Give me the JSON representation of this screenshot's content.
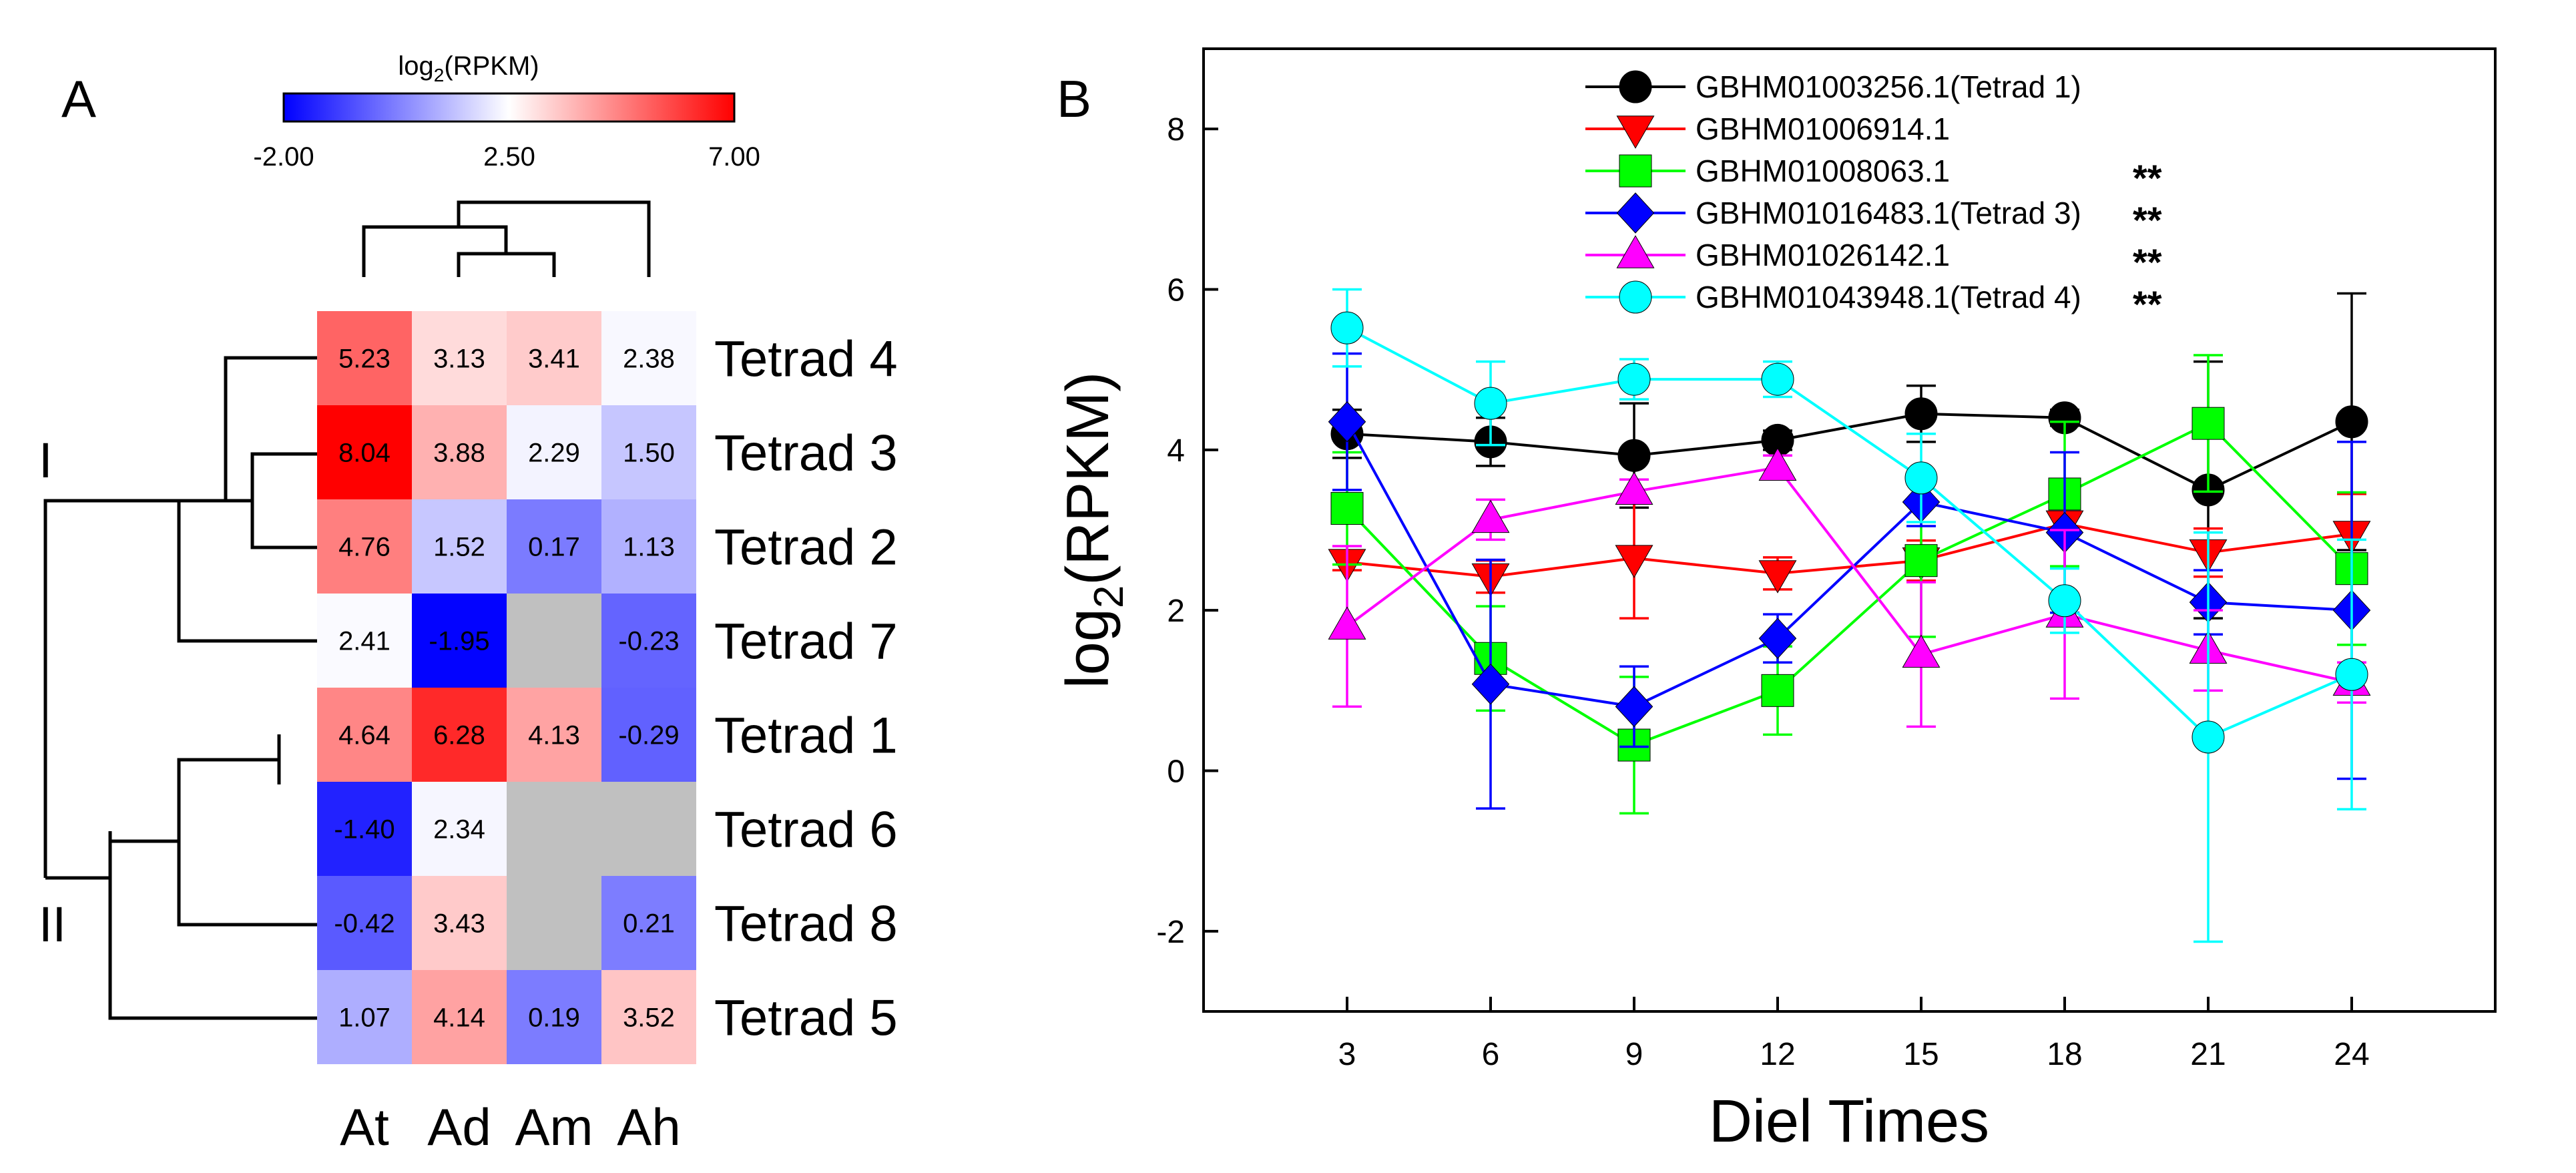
{
  "panel_a": {
    "label": "A",
    "colorbar": {
      "title": "log2(RPKM)",
      "title_main": "log",
      "title_sub": "2",
      "title_rest": "(RPKM)",
      "min_label": "-2.00",
      "mid_label": "2.50",
      "max_label": "7.00",
      "min_color": "#0000ff",
      "mid_color": "#ffffff",
      "max_color": "#ff0000",
      "missing_color": "#c0c0c0"
    },
    "group_labels": [
      "I",
      "II"
    ]
  },
  "panel_b": {
    "label": "B",
    "significance_marker": "**"
  },
  "chart_data": [
    {
      "type": "heatmap",
      "title": "log2(RPKM)",
      "columns": [
        "At",
        "Ad",
        "Am",
        "Ah"
      ],
      "rows": [
        "Tetrad 4",
        "Tetrad 3",
        "Tetrad 2",
        "Tetrad 7",
        "Tetrad 1",
        "Tetrad 6",
        "Tetrad 8",
        "Tetrad 5"
      ],
      "values": [
        [
          5.23,
          3.13,
          3.41,
          2.38
        ],
        [
          8.04,
          3.88,
          2.29,
          1.5
        ],
        [
          4.76,
          1.52,
          0.17,
          1.13
        ],
        [
          2.41,
          -1.95,
          null,
          -0.23
        ],
        [
          4.64,
          6.28,
          4.13,
          -0.29
        ],
        [
          -1.4,
          2.34,
          null,
          null
        ],
        [
          -0.42,
          3.43,
          null,
          0.21
        ],
        [
          1.07,
          4.14,
          0.19,
          3.52
        ]
      ],
      "labels": [
        [
          "5.23",
          "3.13",
          "3.41",
          "2.38"
        ],
        [
          "8.04",
          "3.88",
          "2.29",
          "1.50"
        ],
        [
          "4.76",
          "1.52",
          "0.17",
          "1.13"
        ],
        [
          "2.41",
          "-1.95",
          "",
          "-0.23"
        ],
        [
          "4.64",
          "6.28",
          "4.13",
          "-0.29"
        ],
        [
          "-1.40",
          "2.34",
          "",
          ""
        ],
        [
          "-0.42",
          "3.43",
          "",
          "0.21"
        ],
        [
          "1.07",
          "4.14",
          "0.19",
          "3.52"
        ]
      ],
      "color_range": [
        -2,
        7
      ],
      "row_clusters": [
        "I",
        "II"
      ]
    },
    {
      "type": "line",
      "xlabel": "Diel Times",
      "ylabel": "log2(RPKM)",
      "ylabel_main": "log",
      "ylabel_sub": "2",
      "ylabel_rest": "(RPKM)",
      "x": [
        3,
        6,
        9,
        12,
        15,
        18,
        21,
        24
      ],
      "xlim": [
        0,
        27
      ],
      "ylim": [
        -3,
        9
      ],
      "xticks": [
        "3",
        "6",
        "9",
        "12",
        "15",
        "18",
        "21",
        "24"
      ],
      "yticks": [
        "-2",
        "0",
        "2",
        "4",
        "6",
        "8"
      ],
      "legend_position": "top-center",
      "series": [
        {
          "name": "GBHM01003256.1(Tetrad 1)",
          "color": "#000000",
          "marker": "circle",
          "significant": false,
          "values": [
            4.2,
            4.1,
            3.93,
            4.12,
            4.45,
            4.4,
            3.5,
            4.35
          ],
          "errors": [
            0.3,
            0.3,
            0.65,
            0.12,
            0.35,
            0.1,
            1.6,
            1.6
          ]
        },
        {
          "name": "GBHM01006914.1",
          "color": "#ff0000",
          "marker": "triangle-down",
          "significant": false,
          "values": [
            2.6,
            2.42,
            2.65,
            2.46,
            2.62,
            3.08,
            2.72,
            2.95
          ],
          "errors": [
            0.1,
            0.2,
            0.75,
            0.2,
            0.25,
            0.1,
            0.3,
            0.5
          ]
        },
        {
          "name": "GBHM01008063.1",
          "color": "#00ff00",
          "marker": "square",
          "significant": true,
          "values": [
            3.27,
            1.4,
            0.32,
            1.0,
            2.62,
            3.45,
            4.33,
            2.52
          ],
          "errors": [
            0.7,
            0.65,
            0.85,
            0.55,
            0.95,
            0.9,
            0.85,
            0.95
          ]
        },
        {
          "name": "GBHM01016483.1(Tetrad 3)",
          "color": "#0000ff",
          "marker": "diamond",
          "significant": true,
          "values": [
            4.35,
            1.08,
            0.8,
            1.65,
            3.35,
            2.97,
            2.1,
            2.0
          ],
          "errors": [
            0.85,
            1.55,
            0.5,
            0.3,
            0.3,
            1.0,
            0.4,
            2.1
          ]
        },
        {
          "name": "GBHM01026142.1",
          "color": "#ff00ff",
          "marker": "triangle-up",
          "significant": true,
          "values": [
            1.8,
            3.13,
            3.48,
            3.78,
            1.45,
            1.95,
            1.5,
            1.1
          ],
          "errors": [
            1.0,
            0.25,
            0.15,
            0.15,
            0.9,
            1.05,
            0.5,
            0.25
          ]
        },
        {
          "name": "GBHM01043948.1(Tetrad 4)",
          "color": "#00ffff",
          "marker": "circle",
          "significant": true,
          "values": [
            5.52,
            4.58,
            4.88,
            4.88,
            3.65,
            2.12,
            0.42,
            1.2
          ],
          "errors": [
            0.48,
            0.52,
            0.25,
            0.22,
            0.55,
            0.4,
            2.55,
            1.68
          ]
        }
      ]
    }
  ]
}
